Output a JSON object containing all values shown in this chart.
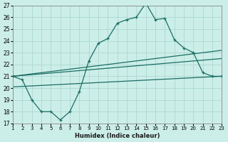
{
  "xlabel": "Humidex (Indice chaleur)",
  "ylabel": "",
  "bg_color": "#cceee8",
  "grid_color": "#aad8d0",
  "line_color": "#1a6e64",
  "x_values": [
    1,
    2,
    3,
    4,
    5,
    6,
    7,
    8,
    9,
    10,
    11,
    12,
    13,
    14,
    15,
    16,
    17,
    18,
    19,
    20,
    21,
    22,
    23
  ],
  "main_line": [
    21.0,
    20.7,
    19.0,
    18.0,
    18.0,
    17.3,
    18.0,
    19.7,
    22.3,
    23.8,
    24.2,
    25.5,
    25.8,
    26.0,
    27.2,
    25.8,
    25.9,
    24.1,
    23.4,
    23.0,
    21.3,
    21.0,
    21.0
  ],
  "upper_line_x": [
    1,
    23
  ],
  "upper_line_y": [
    21.0,
    23.2
  ],
  "mid_line_x": [
    1,
    23
  ],
  "mid_line_y": [
    21.0,
    22.5
  ],
  "lower_line_x": [
    1,
    23
  ],
  "lower_line_y": [
    20.1,
    21.0
  ],
  "ylim": [
    17,
    27
  ],
  "xlim": [
    1,
    23
  ],
  "yticks": [
    17,
    18,
    19,
    20,
    21,
    22,
    23,
    24,
    25,
    26,
    27
  ],
  "xtick_labels": [
    "1",
    "2",
    "3",
    "4",
    "5",
    "6",
    "7",
    "8",
    "9",
    "10",
    "11",
    "12",
    "13",
    "14",
    "15",
    "16",
    "17",
    "18",
    "19",
    "20",
    "21",
    "22",
    "23"
  ]
}
